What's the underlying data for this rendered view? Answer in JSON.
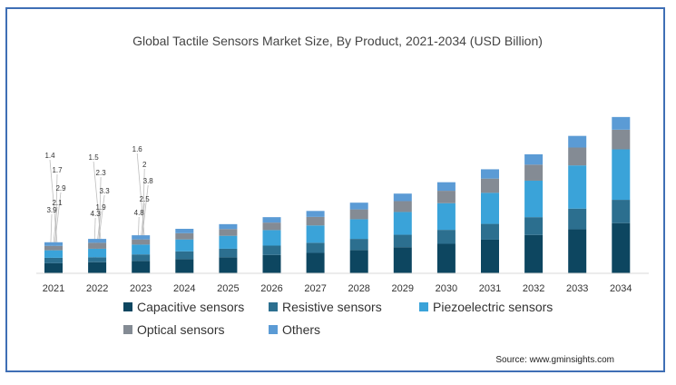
{
  "chart_data": {
    "type": "bar",
    "stacked": true,
    "title": "Global Tactile Sensors Market Size, By Product, 2021-2034  (USD Billion)",
    "categories": [
      "2021",
      "2022",
      "2023",
      "2024",
      "2025",
      "2026",
      "2027",
      "2028",
      "2029",
      "2030",
      "2031",
      "2032",
      "2033",
      "2034"
    ],
    "series": [
      {
        "name": "Capacitive sensors",
        "color": "#0d4660",
        "values": [
          3.9,
          4.3,
          4.8,
          5.5,
          6.2,
          7.1,
          7.9,
          9.0,
          10.1,
          11.4,
          13.0,
          14.8,
          17.0,
          19.4
        ]
      },
      {
        "name": "Resistive sensors",
        "color": "#2c6f8f",
        "values": [
          2.1,
          1.9,
          2.5,
          3.0,
          3.3,
          3.6,
          3.9,
          4.3,
          4.8,
          5.4,
          6.1,
          6.9,
          8.0,
          9.0
        ]
      },
      {
        "name": "Piezoelectric sensors",
        "color": "#3aa3d9",
        "values": [
          2.9,
          3.3,
          3.8,
          4.6,
          5.0,
          6.0,
          6.7,
          7.6,
          8.8,
          10.3,
          12.0,
          14.1,
          16.7,
          19.5
        ]
      },
      {
        "name": "Optical sensors",
        "color": "#848b94",
        "values": [
          1.7,
          2.3,
          2.0,
          2.4,
          2.6,
          2.9,
          3.3,
          3.8,
          4.2,
          4.8,
          5.5,
          6.2,
          6.9,
          7.6
        ]
      },
      {
        "name": "Others",
        "color": "#5b9bd5",
        "values": [
          1.4,
          1.5,
          1.6,
          1.7,
          1.9,
          2.1,
          2.3,
          2.6,
          2.9,
          3.3,
          3.6,
          4.0,
          4.5,
          4.9
        ]
      }
    ],
    "data_labels": [
      {
        "category": "2021",
        "labels": [
          "3.9",
          "2.1",
          "2.9",
          "1.7",
          "1.4"
        ]
      },
      {
        "category": "2022",
        "labels": [
          "4.3",
          "1.9",
          "3.3",
          "2.3",
          "1.5"
        ]
      },
      {
        "category": "2023",
        "labels": [
          "4.8",
          "2.5",
          "3.8",
          "2",
          "1.6"
        ]
      }
    ],
    "legend_position": "bottom",
    "grid": false,
    "source": "Source: www.gminsights.com"
  }
}
